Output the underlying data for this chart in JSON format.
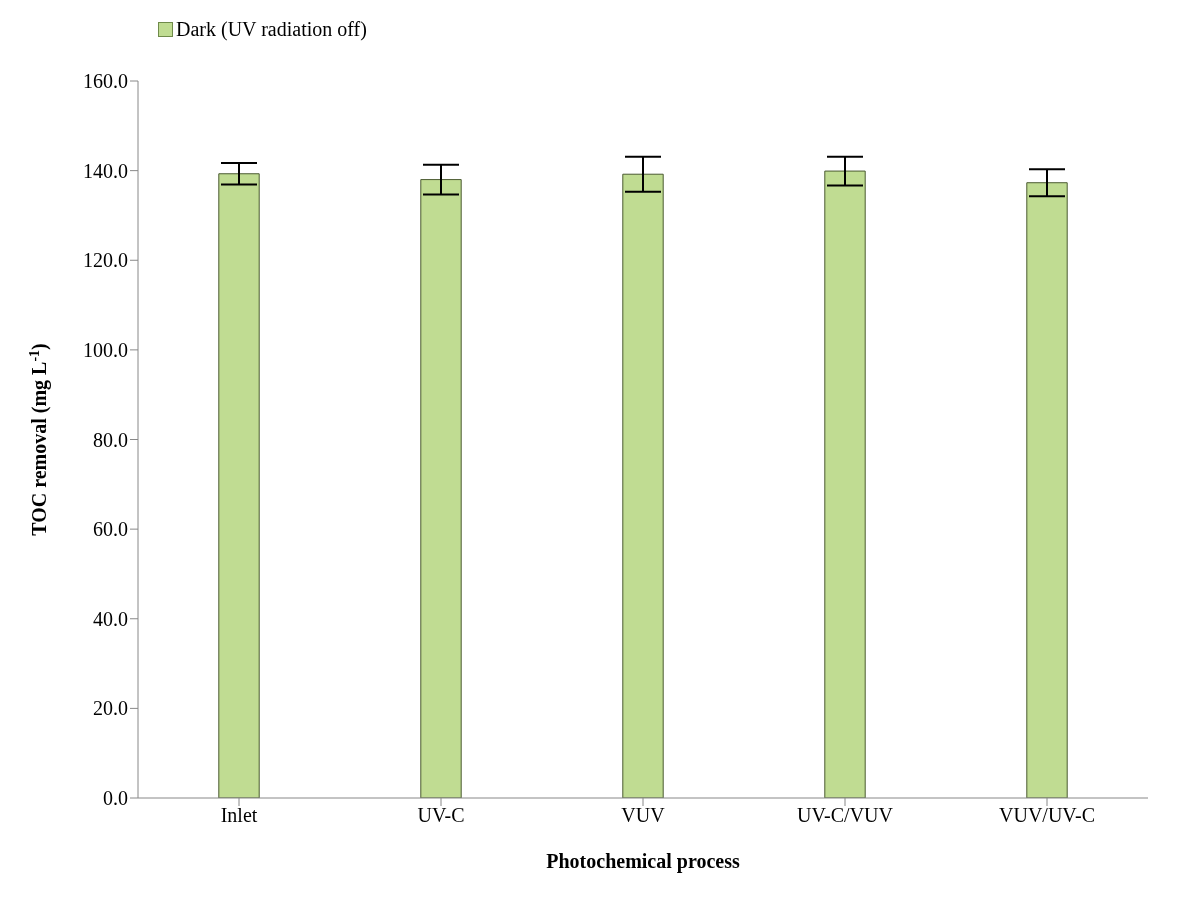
{
  "chart_data": {
    "type": "bar",
    "categories": [
      "Inlet",
      "UV-C",
      "VUV",
      "UV-C/VUV",
      "VUV/UV-C"
    ],
    "series": [
      {
        "name": "Dark (UV radiation off)",
        "color": "#c0dc92",
        "values": [
          139.3,
          138.0,
          139.2,
          139.9,
          137.3
        ],
        "errors": [
          2.4,
          3.3,
          3.9,
          3.2,
          3.0
        ]
      }
    ],
    "xlabel": "Photochemical process",
    "ylabel": "TOC removal (mg L$^{-1}$)",
    "ylim": [
      0,
      160
    ],
    "yticks": [
      {
        "value": 0,
        "label": "0.0"
      },
      {
        "value": 20,
        "label": "20.0"
      },
      {
        "value": 40,
        "label": "40.0"
      },
      {
        "value": 60,
        "label": "60.0"
      },
      {
        "value": 80,
        "label": "80.0"
      },
      {
        "value": 100,
        "label": "100.0"
      },
      {
        "value": 120,
        "label": "120.0"
      },
      {
        "value": 140,
        "label": "140.0"
      },
      {
        "value": 160,
        "label": "160.0"
      }
    ],
    "grid": false,
    "legend": "top left"
  }
}
